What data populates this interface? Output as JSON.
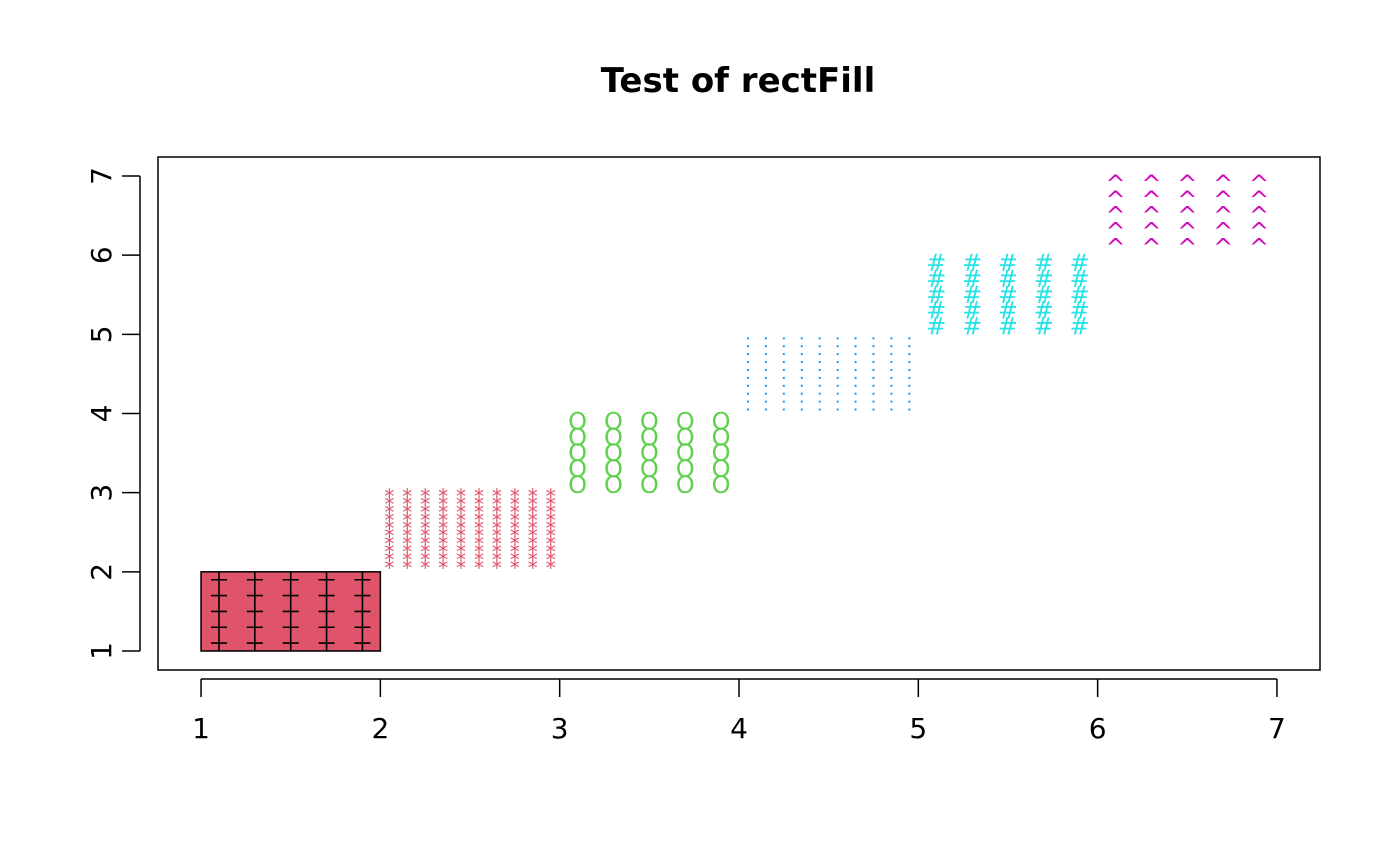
{
  "chart_data": {
    "type": "rect",
    "title": "Test of rectFill",
    "xlabel": "",
    "ylabel": "",
    "xlim": [
      0.76,
      7.24
    ],
    "ylim": [
      0.76,
      7.24
    ],
    "x_ticks": [
      "1",
      "2",
      "3",
      "4",
      "5",
      "6",
      "7"
    ],
    "y_ticks": [
      "1",
      "2",
      "3",
      "4",
      "5",
      "6",
      "7"
    ],
    "grid": false,
    "rects": [
      {
        "x0": 1,
        "x1": 2,
        "y0": 1,
        "y1": 2,
        "fill": "#DF536B",
        "border": "#000000",
        "pch": "+",
        "pch_color": "#000000",
        "nx": 5,
        "ny": 5
      },
      {
        "x0": 2,
        "x1": 3,
        "y0": 2,
        "y1": 3,
        "fill": "",
        "border": "",
        "pch": "*",
        "pch_color": "#DF536B",
        "nx": 10,
        "ny": 10
      },
      {
        "x0": 3,
        "x1": 4,
        "y0": 3,
        "y1": 4,
        "fill": "",
        "border": "",
        "pch": "o",
        "pch_color": "#61D04F",
        "nx": 5,
        "ny": 5
      },
      {
        "x0": 4,
        "x1": 5,
        "y0": 4,
        "y1": 5,
        "fill": "",
        "border": "",
        "pch": ".",
        "pch_color": "#2297E6",
        "nx": 10,
        "ny": 10
      },
      {
        "x0": 5,
        "x1": 6,
        "y0": 5,
        "y1": 6,
        "fill": "",
        "border": "",
        "pch": "#",
        "pch_color": "#28E2E5",
        "nx": 5,
        "ny": 5
      },
      {
        "x0": 6,
        "x1": 7,
        "y0": 6,
        "y1": 7,
        "fill": "",
        "border": "",
        "pch": "^",
        "pch_color": "#CD0BBC",
        "nx": 5,
        "ny": 5
      }
    ]
  }
}
